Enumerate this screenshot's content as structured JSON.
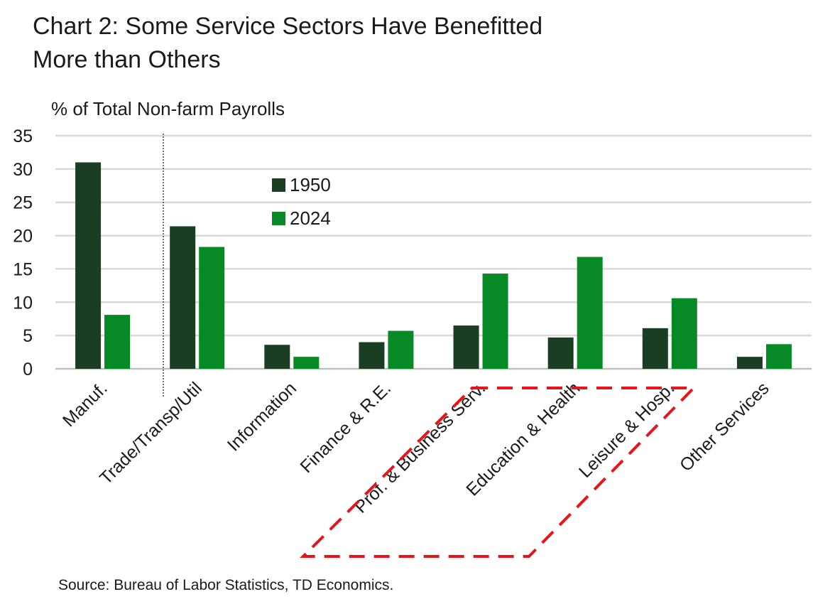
{
  "title_line1": "Chart 2: Some Service Sectors Have Benefitted",
  "title_line2": "More than Others",
  "source": "Source: Bureau of Labor Statistics, TD Economics.",
  "colors": {
    "series_1950": "#1b3d23",
    "series_2024": "#078a25",
    "grid": "#d9d9d9",
    "highlight": "#e8141a"
  },
  "chart_data": {
    "type": "bar",
    "title": "Chart 2: Some Service Sectors Have Benefitted More than Others",
    "ylabel": "% of Total Non-farm Payrolls",
    "xlabel": "",
    "ylim": [
      0,
      35
    ],
    "yticks": [
      0,
      5,
      10,
      15,
      20,
      25,
      30,
      35
    ],
    "grid": true,
    "legend_position": "top-center",
    "categories": [
      "Manuf.",
      "Trade/Transp/Util",
      "Information",
      "Finance & R.E.",
      "Prof. & Business Serv.",
      "Education & Health",
      "Leisure & Hosp.",
      "Other Services"
    ],
    "series": [
      {
        "name": "1950",
        "values": [
          31.0,
          21.4,
          3.6,
          4.0,
          6.5,
          4.7,
          6.1,
          1.8
        ]
      },
      {
        "name": "2024",
        "values": [
          8.1,
          18.3,
          1.8,
          5.7,
          14.3,
          16.8,
          10.6,
          3.7
        ]
      }
    ],
    "highlighted_categories": [
      "Prof. & Business Serv.",
      "Education & Health",
      "Leisure & Hosp."
    ]
  }
}
